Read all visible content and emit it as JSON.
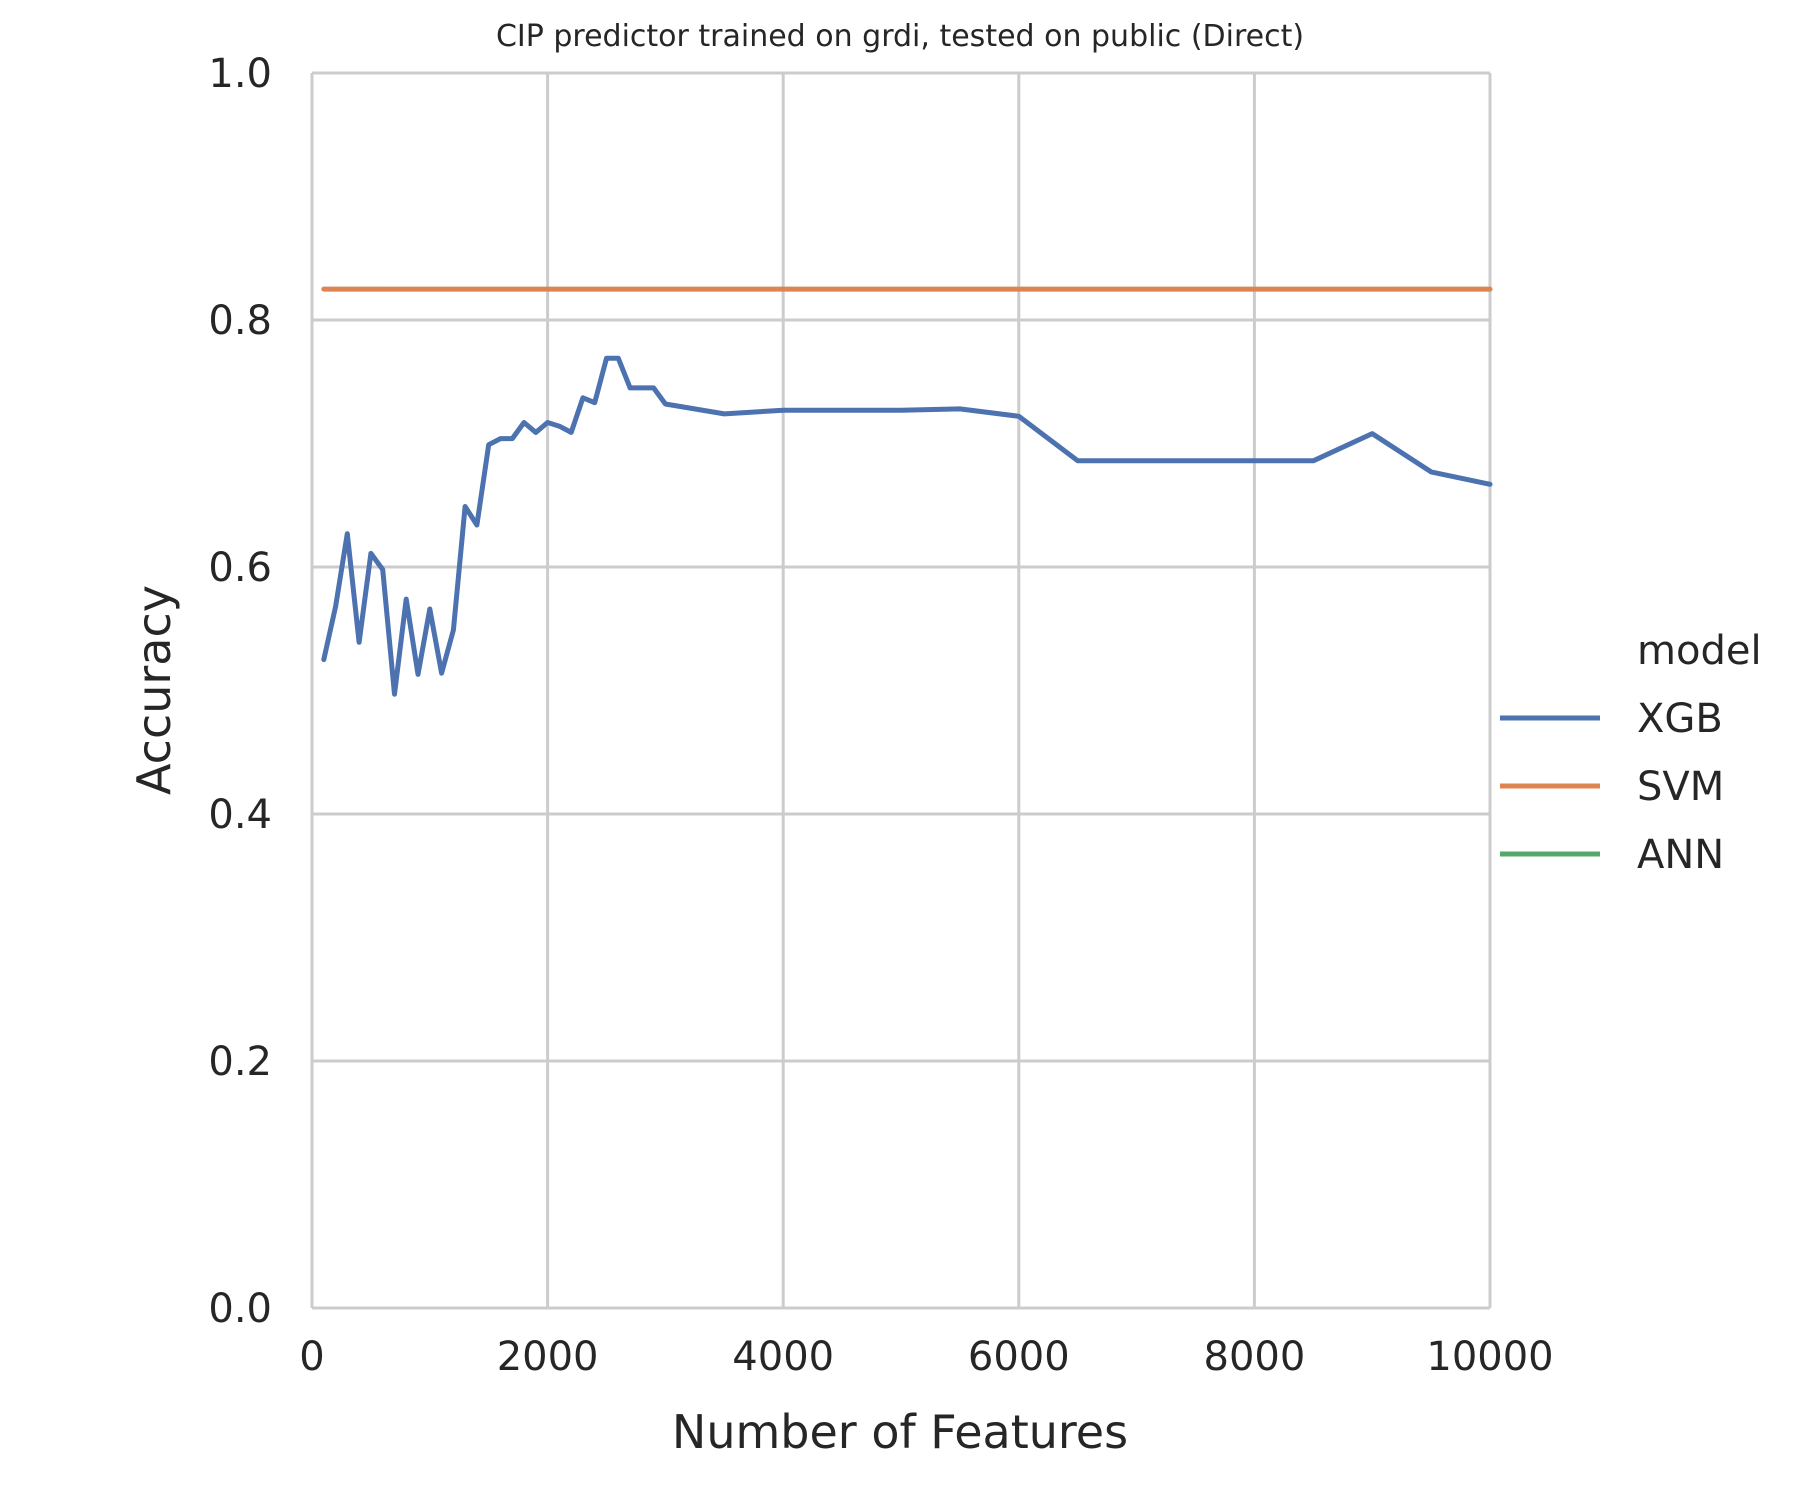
{
  "chart_data": {
    "type": "line",
    "title": "CIP predictor trained on grdi, tested on public (Direct)",
    "xlabel": "Number of Features",
    "ylabel": "Accuracy",
    "xlim": [
      0,
      10000
    ],
    "ylim": [
      0,
      1.0
    ],
    "xticks": [
      0,
      2000,
      4000,
      6000,
      8000,
      10000
    ],
    "xtick_labels": [
      "0",
      "2000",
      "4000",
      "6000",
      "8000",
      "10000"
    ],
    "yticks": [
      0,
      0.2,
      0.4,
      0.6,
      0.8,
      1.0
    ],
    "ytick_labels": [
      "0.0",
      "0.2",
      "0.4",
      "0.6",
      "0.8",
      "1.0"
    ],
    "grid": true,
    "legend": {
      "title": "model",
      "placement": "right",
      "entries": [
        "XGB",
        "SVM",
        "ANN"
      ]
    },
    "series": [
      {
        "name": "XGB",
        "color": "#4c72b0",
        "x": [
          100,
          200,
          300,
          400,
          500,
          600,
          700,
          800,
          900,
          1000,
          1100,
          1200,
          1300,
          1400,
          1500,
          1600,
          1700,
          1800,
          1900,
          2000,
          2100,
          2200,
          2300,
          2400,
          2500,
          2600,
          2700,
          2800,
          2900,
          3000,
          3500,
          4000,
          4500,
          5000,
          5500,
          6000,
          6500,
          7000,
          7500,
          8000,
          8500,
          9000,
          9500,
          10000
        ],
        "y": [
          0.525,
          0.568,
          0.627,
          0.539,
          0.611,
          0.598,
          0.497,
          0.574,
          0.513,
          0.566,
          0.514,
          0.549,
          0.649,
          0.634,
          0.699,
          0.704,
          0.704,
          0.717,
          0.709,
          0.717,
          0.714,
          0.709,
          0.737,
          0.733,
          0.769,
          0.769,
          0.745,
          0.745,
          0.745,
          0.732,
          0.724,
          0.727,
          0.727,
          0.727,
          0.728,
          0.722,
          0.686,
          0.686,
          0.686,
          0.686,
          0.686,
          0.708,
          0.677,
          0.667
        ]
      },
      {
        "name": "SVM",
        "color": "#dd8452",
        "x": [
          100,
          10000
        ],
        "y": [
          0.825,
          0.825
        ]
      },
      {
        "name": "ANN",
        "color": "#55a868",
        "x": [],
        "y": []
      }
    ]
  }
}
